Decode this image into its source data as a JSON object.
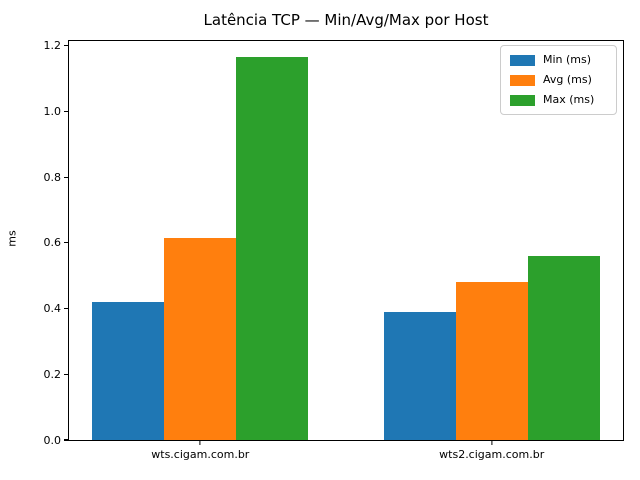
{
  "figure": {
    "background": "#ffffff",
    "axis_color": "#000000",
    "text_color": "#000000"
  },
  "chart_data": {
    "type": "bar",
    "title": "Latência TCP — Min/Avg/Max por Host",
    "xlabel": "",
    "ylabel": "ms",
    "categories": [
      "wts.cigam.com.br",
      "wts2.cigam.com.br"
    ],
    "series": [
      {
        "name": "Min (ms)",
        "color": "#1f77b4",
        "values": [
          0.42,
          0.39
        ]
      },
      {
        "name": "Avg (ms)",
        "color": "#ff7f0e",
        "values": [
          0.615,
          0.48
        ]
      },
      {
        "name": "Max (ms)",
        "color": "#2ca02c",
        "values": [
          1.165,
          0.56
        ]
      }
    ],
    "ylim": [
      0,
      1.215
    ],
    "yticks": [
      0.0,
      0.2,
      0.4,
      0.6,
      0.8,
      1.0,
      1.2
    ],
    "ytick_decimals": 1,
    "grid": false,
    "legend_position": "upper-right",
    "layout": {
      "category_centers_pct": [
        23.7,
        76.3
      ],
      "bar_width_pct": 13.0
    }
  }
}
